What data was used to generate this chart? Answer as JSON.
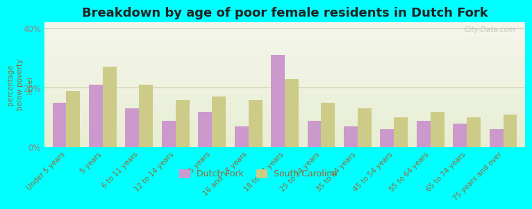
{
  "title": "Breakdown by age of poor female residents in Dutch Fork",
  "ylabel": "percentage\nbelow poverty\nlevel",
  "categories": [
    "Under 5 years",
    "5 years",
    "6 to 11 years",
    "12 to 14 years",
    "15 years",
    "16 and 17 years",
    "18 to 24 years",
    "25 to 34 years",
    "35 to 44 years",
    "45 to 54 years",
    "55 to 64 years",
    "65 to 74 years",
    "75 years and over"
  ],
  "dutch_fork": [
    15,
    21,
    13,
    9,
    12,
    7,
    31,
    9,
    7,
    6,
    9,
    8,
    6
  ],
  "south_carolina": [
    19,
    27,
    21,
    16,
    17,
    16,
    23,
    15,
    13,
    10,
    12,
    10,
    11
  ],
  "dutch_fork_color": "#cc99cc",
  "south_carolina_color": "#cccc88",
  "background_color": "#00ffff",
  "grid_color": "#ccccaa",
  "title_fontsize": 13,
  "tick_fontsize": 7.5,
  "ylabel_fontsize": 7.5,
  "legend_fontsize": 9,
  "ylim": [
    0,
    42
  ],
  "yticks": [
    0,
    20,
    40
  ],
  "ytick_labels": [
    "0%",
    "20%",
    "40%"
  ],
  "watermark": "City-Data.com",
  "text_color": "#996633",
  "ytick_color": "#888888"
}
